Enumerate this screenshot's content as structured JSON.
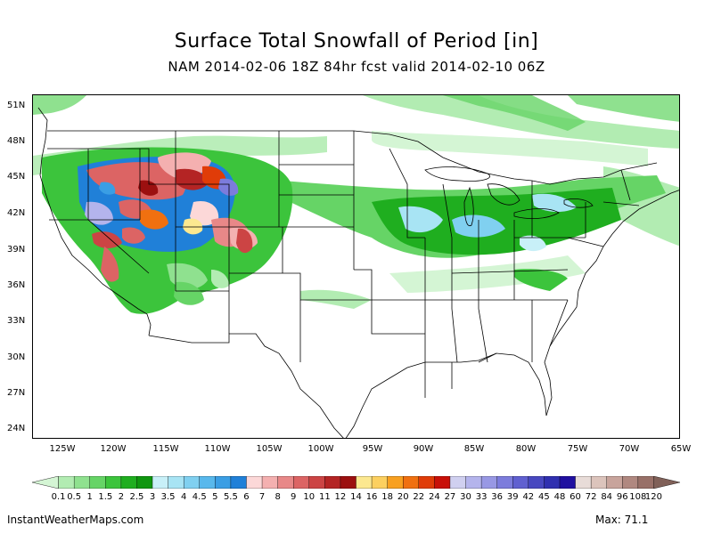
{
  "title": "Surface Total Snowfall of Period [in]",
  "subtitle": "NAM 2014-02-06 18Z 84hr fcst valid 2014-02-10 06Z",
  "lat_labels": [
    "51N",
    "48N",
    "45N",
    "42N",
    "39N",
    "36N",
    "33N",
    "30N",
    "27N",
    "24N"
  ],
  "lon_labels": [
    "125W",
    "120W",
    "115W",
    "110W",
    "105W",
    "100W",
    "95W",
    "90W",
    "85W",
    "80W",
    "75W",
    "70W",
    "65W"
  ],
  "colorbar": {
    "levels": [
      "0.1",
      "0.5",
      "1",
      "1.5",
      "2",
      "2.5",
      "3",
      "3.5",
      "4",
      "4.5",
      "5",
      "5.5",
      "6",
      "7",
      "8",
      "9",
      "10",
      "11",
      "12",
      "14",
      "16",
      "18",
      "20",
      "22",
      "24",
      "27",
      "30",
      "33",
      "36",
      "39",
      "42",
      "45",
      "48",
      "60",
      "72",
      "84",
      "96",
      "108",
      "120"
    ],
    "colors": [
      "#d4f5d4",
      "#b2ecb2",
      "#8fe18f",
      "#66d466",
      "#3cc43c",
      "#1fae1f",
      "#0f960f",
      "#c8f0f8",
      "#a8e4f4",
      "#80d0f0",
      "#58b8ec",
      "#3a9ee4",
      "#2080d8",
      "#fcd8d8",
      "#f4b0b0",
      "#e88888",
      "#dc6464",
      "#cc4444",
      "#b42424",
      "#9c1010",
      "#fce890",
      "#fcd060",
      "#f8a020",
      "#f07010",
      "#e03c08",
      "#c81008",
      "#d0d0f0",
      "#b4b4ec",
      "#9898e4",
      "#7c7cdc",
      "#6060d0",
      "#4848c0",
      "#3030b0",
      "#2010a0",
      "#e8dcd8",
      "#dcc4bc",
      "#c8a49c",
      "#b08880",
      "#987068",
      "#806058"
    ]
  },
  "footer": {
    "site": "InstantWeatherMaps.com",
    "max_label": "Max:  71.1"
  },
  "map": {
    "heavy_snow_region": "Rocky Mountains / Great Basin",
    "moderate_snow_region": "Great Lakes / Northeast"
  }
}
